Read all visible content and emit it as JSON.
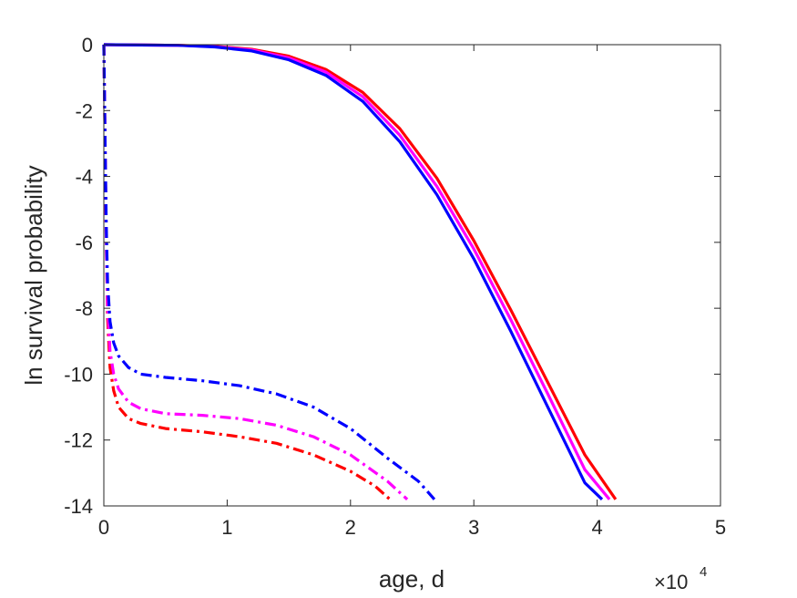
{
  "chart_data": {
    "type": "line",
    "xlabel": "age, d",
    "ylabel": "ln survival probability",
    "x_multiplier": {
      "base": "×10",
      "exponent": "4"
    },
    "xlim": [
      0,
      50000
    ],
    "ylim": [
      -14,
      0
    ],
    "xticks": [
      0,
      10000,
      20000,
      30000,
      40000,
      50000
    ],
    "xtick_labels": [
      "0",
      "1",
      "2",
      "3",
      "4",
      "5"
    ],
    "yticks": [
      0,
      -2,
      -4,
      -6,
      -8,
      -10,
      -12,
      -14
    ],
    "ytick_labels": [
      "0",
      "-2",
      "-4",
      "-6",
      "-8",
      "-10",
      "-12",
      "-14"
    ],
    "grid": false,
    "legend": "none",
    "series": [
      {
        "style": "solid",
        "color": "#ff0000",
        "x": [
          0,
          3000,
          6000,
          9000,
          12000,
          15000,
          18000,
          21000,
          24000,
          27000,
          30000,
          33000,
          36000,
          39000,
          41500
        ],
        "y": [
          0,
          -0.01,
          -0.02,
          -0.05,
          -0.14,
          -0.35,
          -0.75,
          -1.45,
          -2.55,
          -4.05,
          -5.95,
          -8.05,
          -10.25,
          -12.45,
          -13.8
        ]
      },
      {
        "style": "solid",
        "color": "#ff00ff",
        "x": [
          0,
          3000,
          6000,
          9000,
          12000,
          15000,
          18000,
          21000,
          24000,
          27000,
          30000,
          33000,
          36000,
          39000,
          41000
        ],
        "y": [
          0,
          -0.01,
          -0.02,
          -0.06,
          -0.16,
          -0.4,
          -0.83,
          -1.58,
          -2.75,
          -4.3,
          -6.2,
          -8.35,
          -10.6,
          -12.9,
          -13.8
        ]
      },
      {
        "style": "solid",
        "color": "#0000ff",
        "x": [
          0,
          3000,
          6000,
          9000,
          12000,
          15000,
          18000,
          21000,
          24000,
          27000,
          30000,
          33000,
          36000,
          39000,
          40400
        ],
        "y": [
          0,
          -0.01,
          -0.02,
          -0.07,
          -0.19,
          -0.46,
          -0.93,
          -1.72,
          -2.95,
          -4.55,
          -6.5,
          -8.7,
          -11.0,
          -13.3,
          -13.8
        ]
      },
      {
        "style": "dashdot",
        "color": "#ff0000",
        "x": [
          0,
          100,
          200,
          300,
          500,
          800,
          1200,
          2000,
          3000,
          5000,
          8000,
          11000,
          14000,
          17000,
          20000,
          22000,
          23200
        ],
        "y": [
          0,
          -3,
          -6,
          -8.3,
          -9.8,
          -10.5,
          -11.0,
          -11.35,
          -11.5,
          -11.65,
          -11.75,
          -11.9,
          -12.1,
          -12.45,
          -12.95,
          -13.4,
          -13.8
        ]
      },
      {
        "style": "dashdot",
        "color": "#ff00ff",
        "x": [
          0,
          100,
          200,
          300,
          500,
          800,
          1200,
          2000,
          3000,
          5000,
          8000,
          11000,
          14000,
          17000,
          20000,
          23000,
          24600
        ],
        "y": [
          0,
          -3,
          -6,
          -7.9,
          -9.3,
          -10.0,
          -10.45,
          -10.85,
          -11.05,
          -11.2,
          -11.25,
          -11.35,
          -11.55,
          -11.9,
          -12.45,
          -13.25,
          -13.8
        ]
      },
      {
        "style": "dashdot",
        "color": "#0000ff",
        "x": [
          0,
          100,
          200,
          300,
          500,
          800,
          1200,
          2000,
          3000,
          5000,
          8000,
          11000,
          14000,
          17000,
          20000,
          23000,
          25500,
          26800
        ],
        "y": [
          0,
          -3,
          -5.5,
          -7.2,
          -8.4,
          -9.05,
          -9.45,
          -9.8,
          -10.0,
          -10.1,
          -10.2,
          -10.35,
          -10.6,
          -11.0,
          -11.65,
          -12.55,
          -13.25,
          -13.8
        ]
      }
    ]
  }
}
